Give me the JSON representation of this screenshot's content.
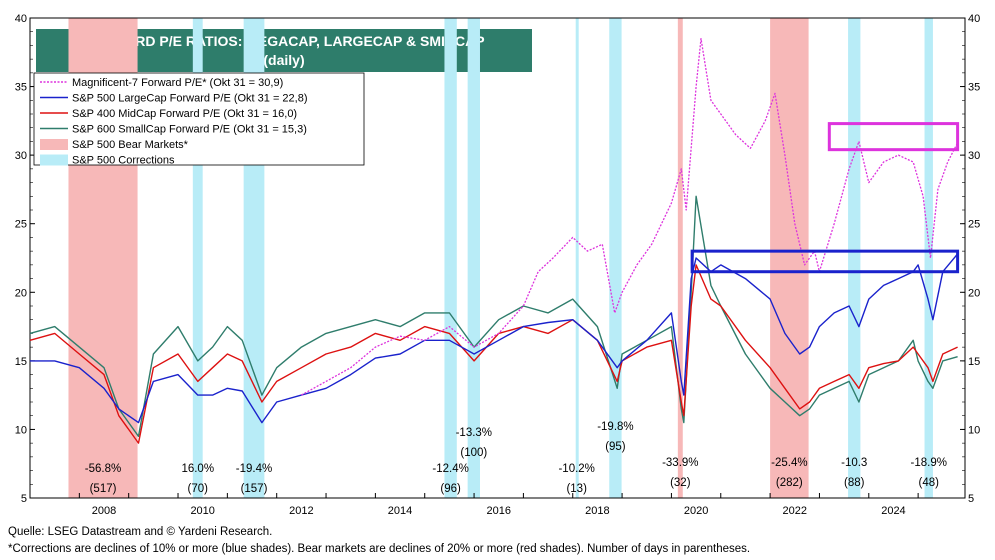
{
  "title_line1": "FORWARD P/E RATIOS: MEGACAP, LARGECAP & SMIDCAP",
  "title_line2": "(daily)",
  "footnote1": "Quelle: LSEG Datastream and © Yardeni Research.",
  "footnote2": "*Corrections are declines of 10% or more (blue shades). Bear markets are declines of 20% or more (red shades). Number of days in parentheses.",
  "colors": {
    "mag7": "#dd33dd",
    "sp500": "#1a22cc",
    "sp400": "#dd1111",
    "sp600": "#2f7d6c",
    "bear": "#f7b8b8",
    "correction": "#b8ecf7",
    "title_bg": "#2e7d6b"
  },
  "legend": [
    {
      "label": "Magnificent-7 Forward P/E* (Okt 31 = 30,9)",
      "key": "mag7",
      "style": "dotted"
    },
    {
      "label": "S&P 500 LargeCap Forward P/E (Okt 31 = 22,8)",
      "key": "sp500",
      "style": "line"
    },
    {
      "label": "S&P 400 MidCap Forward P/E (Okt 31 = 16,0)",
      "key": "sp400",
      "style": "line"
    },
    {
      "label": "S&P 600 SmallCap Forward P/E (Okt 31 = 15,3)",
      "key": "sp600",
      "style": "line"
    },
    {
      "label": "S&P 500 Bear Markets*",
      "key": "bear",
      "style": "box"
    },
    {
      "label": "S&P 500 Corrections",
      "key": "correction",
      "style": "box"
    }
  ],
  "chart_data": {
    "type": "line",
    "x_range": [
      2007.0,
      2025.95
    ],
    "ylim": [
      5,
      40
    ],
    "y_ticks": [
      5,
      10,
      15,
      20,
      25,
      30,
      35,
      40
    ],
    "x_ticks": [
      2008,
      2010,
      2012,
      2014,
      2016,
      2018,
      2020,
      2022,
      2024
    ],
    "shaded_periods": [
      {
        "kind": "bear",
        "start": 2007.78,
        "end": 2009.18,
        "pct": "-56.8%",
        "days": "(517)"
      },
      {
        "kind": "correction",
        "start": 2010.3,
        "end": 2010.5,
        "pct": "16.0%",
        "days": "(70)"
      },
      {
        "kind": "correction",
        "start": 2011.33,
        "end": 2011.75,
        "pct": "-19.4%",
        "days": "(157)"
      },
      {
        "kind": "correction",
        "start": 2015.4,
        "end": 2015.65,
        "pct": "-12.4%",
        "days": "(96)"
      },
      {
        "kind": "correction",
        "start": 2015.87,
        "end": 2016.12,
        "pct": "-13.3%",
        "days": "(100)"
      },
      {
        "kind": "correction",
        "start": 2018.06,
        "end": 2018.1,
        "pct": "-10.2%",
        "days": "(13)"
      },
      {
        "kind": "correction",
        "start": 2018.74,
        "end": 2018.99,
        "pct": "-19.8%",
        "days": "(95)"
      },
      {
        "kind": "bear",
        "start": 2020.13,
        "end": 2020.23,
        "pct": "-33.9%",
        "days": "(32)"
      },
      {
        "kind": "bear",
        "start": 2022.0,
        "end": 2022.78,
        "pct": "-25.4%",
        "days": "(282)"
      },
      {
        "kind": "correction",
        "start": 2023.58,
        "end": 2023.83,
        "pct": "-10.3",
        "days": "(88)"
      },
      {
        "kind": "correction",
        "start": 2025.13,
        "end": 2025.3,
        "pct": "-18.9%",
        "days": "(48)"
      }
    ],
    "highlight_boxes": [
      {
        "key": "mag7",
        "x0": 2023.2,
        "x1": 2025.8,
        "y0": 30.4,
        "y1": 32.3
      },
      {
        "key": "sp500",
        "x0": 2020.42,
        "x1": 2025.8,
        "y0": 21.5,
        "y1": 23.0
      }
    ],
    "series": [
      {
        "name": "Magnificent-7 Forward P/E* (Okt 31 = 30,9)",
        "key": "mag7",
        "x": [
          2012.5,
          2013.0,
          2013.5,
          2014.0,
          2014.5,
          2015.0,
          2015.5,
          2016.0,
          2016.5,
          2017.0,
          2017.3,
          2017.6,
          2018.0,
          2018.3,
          2018.6,
          2018.85,
          2019.0,
          2019.3,
          2019.6,
          2020.0,
          2020.2,
          2020.3,
          2020.5,
          2020.6,
          2020.8,
          2021.0,
          2021.3,
          2021.6,
          2021.9,
          2022.1,
          2022.3,
          2022.5,
          2022.7,
          2022.9,
          2023.0,
          2023.3,
          2023.6,
          2023.8,
          2024.0,
          2024.3,
          2024.6,
          2024.9,
          2025.1,
          2025.25,
          2025.4,
          2025.6,
          2025.8
        ],
        "values": [
          12.5,
          13.5,
          14.5,
          16.0,
          16.8,
          16.5,
          17.5,
          16.0,
          17.0,
          19.0,
          21.5,
          22.5,
          24.0,
          23.0,
          23.5,
          18.5,
          20.0,
          22.0,
          23.5,
          26.5,
          29.0,
          26.0,
          35.0,
          38.5,
          34.0,
          33.0,
          31.5,
          30.5,
          32.5,
          34.5,
          30.0,
          25.0,
          22.0,
          23.0,
          21.5,
          25.0,
          29.0,
          31.0,
          28.0,
          29.5,
          30.0,
          29.5,
          27.0,
          22.5,
          27.5,
          29.5,
          30.9
        ]
      },
      {
        "name": "S&P 500 LargeCap Forward P/E (Okt 31 = 22,8)",
        "key": "sp500",
        "x": [
          2007.0,
          2007.5,
          2008.0,
          2008.5,
          2008.8,
          2009.2,
          2009.5,
          2010.0,
          2010.4,
          2010.7,
          2011.0,
          2011.3,
          2011.7,
          2012.0,
          2012.5,
          2013.0,
          2013.5,
          2014.0,
          2014.5,
          2015.0,
          2015.5,
          2016.0,
          2016.5,
          2017.0,
          2017.5,
          2018.0,
          2018.5,
          2018.9,
          2019.0,
          2019.5,
          2020.0,
          2020.2,
          2020.25,
          2020.4,
          2020.5,
          2020.8,
          2021.0,
          2021.5,
          2022.0,
          2022.3,
          2022.6,
          2022.8,
          2023.0,
          2023.3,
          2023.6,
          2023.8,
          2024.0,
          2024.3,
          2024.6,
          2024.9,
          2025.0,
          2025.2,
          2025.3,
          2025.5,
          2025.8
        ],
        "values": [
          15.0,
          15.0,
          14.5,
          13.0,
          11.5,
          10.5,
          13.5,
          14.0,
          12.5,
          12.5,
          13.0,
          12.8,
          10.5,
          12.0,
          12.5,
          13.0,
          14.0,
          15.2,
          15.5,
          16.5,
          16.5,
          15.5,
          16.5,
          17.5,
          17.8,
          18.0,
          16.5,
          14.5,
          15.0,
          16.5,
          18.5,
          13.5,
          12.5,
          21.0,
          22.5,
          21.5,
          22.0,
          21.0,
          19.5,
          17.0,
          15.5,
          16.0,
          17.5,
          18.5,
          19.0,
          17.5,
          19.5,
          20.5,
          21.0,
          21.5,
          22.0,
          19.5,
          18.0,
          21.5,
          22.8
        ]
      },
      {
        "name": "S&P 400 MidCap Forward P/E (Okt 31 = 16,0)",
        "key": "sp400",
        "x": [
          2007.0,
          2007.5,
          2008.0,
          2008.5,
          2008.8,
          2009.2,
          2009.5,
          2010.0,
          2010.4,
          2010.7,
          2011.0,
          2011.3,
          2011.7,
          2012.0,
          2012.5,
          2013.0,
          2013.5,
          2014.0,
          2014.5,
          2015.0,
          2015.5,
          2016.0,
          2016.5,
          2017.0,
          2017.5,
          2018.0,
          2018.5,
          2018.9,
          2019.0,
          2019.5,
          2020.0,
          2020.2,
          2020.25,
          2020.4,
          2020.5,
          2020.8,
          2021.0,
          2021.5,
          2022.0,
          2022.3,
          2022.6,
          2022.8,
          2023.0,
          2023.3,
          2023.6,
          2023.8,
          2024.0,
          2024.3,
          2024.6,
          2024.9,
          2025.0,
          2025.2,
          2025.3,
          2025.5,
          2025.8
        ],
        "values": [
          16.5,
          17.0,
          15.5,
          14.0,
          11.0,
          9.0,
          14.5,
          15.5,
          13.5,
          14.5,
          15.5,
          15.0,
          12.0,
          13.5,
          14.5,
          15.5,
          16.0,
          17.0,
          16.5,
          17.5,
          17.0,
          15.0,
          17.0,
          17.5,
          17.0,
          18.0,
          16.5,
          13.5,
          15.0,
          16.0,
          16.5,
          12.0,
          11.0,
          19.0,
          22.0,
          19.5,
          19.0,
          16.5,
          14.5,
          13.0,
          11.5,
          12.0,
          13.0,
          13.5,
          14.0,
          13.0,
          14.5,
          14.8,
          15.0,
          16.0,
          15.5,
          14.5,
          13.5,
          15.5,
          16.0
        ]
      },
      {
        "name": "S&P 600 SmallCap Forward P/E (Okt 31 = 15,3)",
        "key": "sp600",
        "x": [
          2007.0,
          2007.5,
          2008.0,
          2008.5,
          2008.8,
          2009.2,
          2009.5,
          2010.0,
          2010.4,
          2010.7,
          2011.0,
          2011.3,
          2011.7,
          2012.0,
          2012.5,
          2013.0,
          2013.5,
          2014.0,
          2014.5,
          2015.0,
          2015.5,
          2016.0,
          2016.5,
          2017.0,
          2017.5,
          2018.0,
          2018.5,
          2018.9,
          2019.0,
          2019.5,
          2020.0,
          2020.2,
          2020.25,
          2020.4,
          2020.5,
          2020.8,
          2021.0,
          2021.5,
          2022.0,
          2022.3,
          2022.6,
          2022.8,
          2023.0,
          2023.3,
          2023.6,
          2023.8,
          2024.0,
          2024.3,
          2024.6,
          2024.9,
          2025.0,
          2025.2,
          2025.3,
          2025.5,
          2025.8
        ],
        "values": [
          17.0,
          17.5,
          16.0,
          14.5,
          11.5,
          9.5,
          15.5,
          17.5,
          15.0,
          16.0,
          17.5,
          16.5,
          12.5,
          14.5,
          16.0,
          17.0,
          17.5,
          18.0,
          17.5,
          18.5,
          18.5,
          16.0,
          18.0,
          19.0,
          18.5,
          19.5,
          17.5,
          13.0,
          15.5,
          16.5,
          17.5,
          11.5,
          10.5,
          20.0,
          27.0,
          20.5,
          19.0,
          15.5,
          13.0,
          12.0,
          11.0,
          11.5,
          12.5,
          13.0,
          13.5,
          12.0,
          14.0,
          14.5,
          15.0,
          16.5,
          15.0,
          13.5,
          13.0,
          15.0,
          15.3
        ]
      }
    ]
  }
}
